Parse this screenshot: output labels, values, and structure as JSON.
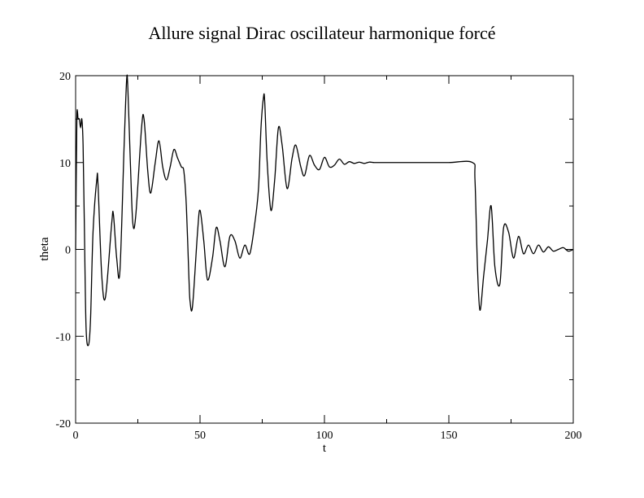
{
  "chart_data": {
    "type": "line",
    "title": "Allure signal Dirac oscillateur harmonique forcé",
    "xlabel": "t",
    "ylabel": "theta",
    "xlim": [
      0,
      200
    ],
    "ylim": [
      -20,
      20
    ],
    "x_ticks": [
      0,
      50,
      100,
      150,
      200
    ],
    "y_ticks": [
      -20,
      -10,
      0,
      10,
      20
    ],
    "grid": false,
    "legend": "none",
    "series": [
      {
        "color": "#000000",
        "x": [
          0,
          0.5,
          1,
          1.5,
          2,
          2.5,
          3,
          3.5,
          4.2,
          5.2,
          6,
          7,
          8.5,
          9,
          10.5,
          12,
          14.5,
          15.2,
          16.5,
          17.8,
          19.5,
          20.5,
          21,
          22,
          23,
          24.2,
          26.5,
          27.5,
          29,
          30.2,
          32,
          33.5,
          35,
          36.5,
          38,
          39.5,
          41,
          42.5,
          43.5,
          44.5,
          45.5,
          46,
          47,
          49,
          50,
          51.5,
          53,
          55,
          56.5,
          58,
          60,
          62,
          64,
          66,
          68,
          70,
          72,
          73.5,
          74.5,
          75.5,
          76,
          77,
          78.5,
          80,
          81.5,
          83,
          85,
          87,
          88.5,
          90.5,
          92,
          94,
          96,
          98,
          100,
          102,
          104,
          106,
          108,
          110,
          112,
          114,
          116,
          118,
          120,
          122,
          124,
          126,
          128,
          140,
          150,
          159.5,
          160.5,
          161.5,
          162.5,
          164,
          165.5,
          167,
          168.5,
          170.5,
          172,
          174,
          176,
          178,
          180,
          182,
          184,
          186,
          188,
          190,
          192,
          194,
          196,
          198,
          200
        ],
        "values": [
          0,
          15,
          15,
          15,
          14,
          15,
          12,
          3,
          -9,
          -11,
          -8,
          2,
          8,
          7.5,
          -3,
          -5.5,
          3,
          4,
          -1,
          -2.5,
          12,
          19.5,
          18.5,
          10,
          3,
          4,
          14,
          15,
          9,
          6.5,
          10,
          12.5,
          9.5,
          8,
          9.5,
          11.5,
          10.5,
          9.5,
          9,
          5,
          -3,
          -6,
          -6.5,
          2,
          4.5,
          1,
          -3.5,
          -1,
          2.5,
          1,
          -2,
          1.5,
          1,
          -1,
          0.5,
          -0.5,
          3,
          7,
          14,
          17.5,
          17,
          10,
          4.5,
          8,
          14,
          12,
          7,
          10.5,
          12,
          9.5,
          8.5,
          10.8,
          9.7,
          9.2,
          10.6,
          9.5,
          9.7,
          10.4,
          9.8,
          10.1,
          9.9,
          10.05,
          9.9,
          10.05,
          10,
          10,
          10,
          10,
          10,
          10,
          10,
          10,
          8,
          -2,
          -7,
          -3,
          1,
          5,
          -2,
          -4,
          2.5,
          2,
          -1,
          1.5,
          -0.5,
          0.5,
          -0.5,
          0.5,
          -0.3,
          0.3,
          -0.2,
          0,
          0.2,
          -0.2,
          0
        ]
      }
    ]
  }
}
